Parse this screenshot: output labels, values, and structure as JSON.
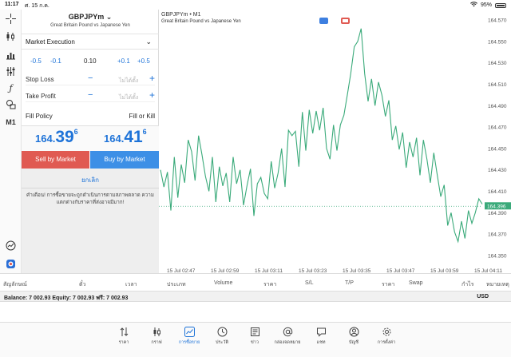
{
  "status": {
    "time": "11:17",
    "date": "ศ. 15 ก.ค.",
    "battery": "95%"
  },
  "sidebar": {
    "m1": "M1",
    "icons": [
      "crosshair-icon",
      "candles-icon",
      "bar-chart-icon",
      "indicators-icon",
      "function-icon",
      "objects-icon",
      "timeframe-icon",
      "one-click-trading-icon",
      "settings-icon"
    ]
  },
  "order": {
    "symbol": "GBPJPYm",
    "description": "Great Britain Pound vs Japanese Yen",
    "execution": "Market Execution",
    "volume": {
      "minus_large": "-0.5",
      "minus_small": "-0.1",
      "value": "0.10",
      "plus_small": "+0.1",
      "plus_large": "+0.5"
    },
    "stop_loss": {
      "label": "Stop Loss",
      "placeholder": "ไม่ได้ตั้ง"
    },
    "take_profit": {
      "label": "Take Profit",
      "placeholder": "ไม่ได้ตั้ง"
    },
    "fill_policy": {
      "label": "Fill Policy",
      "value": "Fill or Kill"
    },
    "bid": {
      "head": "164.",
      "big": "39",
      "sup": "6"
    },
    "ask": {
      "head": "164.",
      "big": "41",
      "sup": "6"
    },
    "sell_label": "Sell by Market",
    "buy_label": "Buy by Market",
    "cancel_label": "ยกเลิก",
    "warning": "คำเตือน! การซื้อขายจะถูกดำเนินการตามสภาพตลาด ความแตกต่างกับราคาที่ส่งอาจมีมาก!"
  },
  "chart_data": {
    "type": "line",
    "title": "GBPJPYm • M1",
    "subtitle": "Great Britain Pound vs Japanese Yen",
    "x_tick_labels": [
      "15 Jul 02:47",
      "15 Jul 02:59",
      "15 Jul 03:11",
      "15 Jul 03:23",
      "15 Jul 03:35",
      "15 Jul 03:47",
      "15 Jul 03:59",
      "15 Jul 04:11"
    ],
    "y_tick_labels": [
      "164.570",
      "164.550",
      "164.530",
      "164.510",
      "164.490",
      "164.470",
      "164.450",
      "164.430",
      "164.410",
      "164.390",
      "164.370",
      "164.350"
    ],
    "ylim": [
      164.341,
      164.576
    ],
    "current_price": "164.396",
    "color": "#3aaa7a",
    "values": [
      164.43,
      164.414,
      164.428,
      164.392,
      164.442,
      164.404,
      164.435,
      164.418,
      164.458,
      164.447,
      164.42,
      164.462,
      164.444,
      164.424,
      164.41,
      164.442,
      164.4,
      164.433,
      164.415,
      164.427,
      164.4,
      164.442,
      164.417,
      164.43,
      164.397,
      164.415,
      164.431,
      164.387,
      164.417,
      164.423,
      164.408,
      164.403,
      164.438,
      164.413,
      164.427,
      164.45,
      164.414,
      164.467,
      164.462,
      164.466,
      164.433,
      164.484,
      164.448,
      164.486,
      164.464,
      164.485,
      164.467,
      164.488,
      164.45,
      164.44,
      164.472,
      164.448,
      164.472,
      164.481,
      164.5,
      164.52,
      164.545,
      164.55,
      164.562,
      164.52,
      164.494,
      164.515,
      164.49,
      164.512,
      164.5,
      164.48,
      164.495,
      164.458,
      164.471,
      164.449,
      164.465,
      164.432,
      164.456,
      164.442,
      164.46,
      164.425,
      164.458,
      164.44,
      164.418,
      164.446,
      164.425,
      164.405,
      164.416,
      164.378,
      164.39,
      164.372,
      164.363,
      164.382,
      164.366,
      164.392,
      164.38,
      164.39,
      164.403,
      164.398
    ]
  },
  "terminal": {
    "headers": [
      "สัญลักษณ์",
      "ตั๋ว",
      "เวลา",
      "ประเภท",
      "Volume",
      "ราคา",
      "S/L",
      "T/P",
      "ราคา",
      "Swap",
      "กำไร",
      "หมายเหตุ"
    ],
    "balance_text": "Balance: 7 002.93 Equity: 7 002.93 ฟรี: 7 002.93",
    "currency": "USD"
  },
  "tabs": [
    {
      "label": "ราคา",
      "icon": "quotes-icon"
    },
    {
      "label": "กราฟ",
      "icon": "chart-icon"
    },
    {
      "label": "การซื้อขาย",
      "icon": "trade-icon",
      "active": true
    },
    {
      "label": "ประวัติ",
      "icon": "history-icon"
    },
    {
      "label": "ข่าว",
      "icon": "news-icon"
    },
    {
      "label": "กล่องจดหมาย",
      "icon": "mailbox-icon"
    },
    {
      "label": "แชท",
      "icon": "chat-icon"
    },
    {
      "label": "บัญชี",
      "icon": "account-icon"
    },
    {
      "label": "การตั้งค่า",
      "icon": "settings-icon"
    }
  ]
}
